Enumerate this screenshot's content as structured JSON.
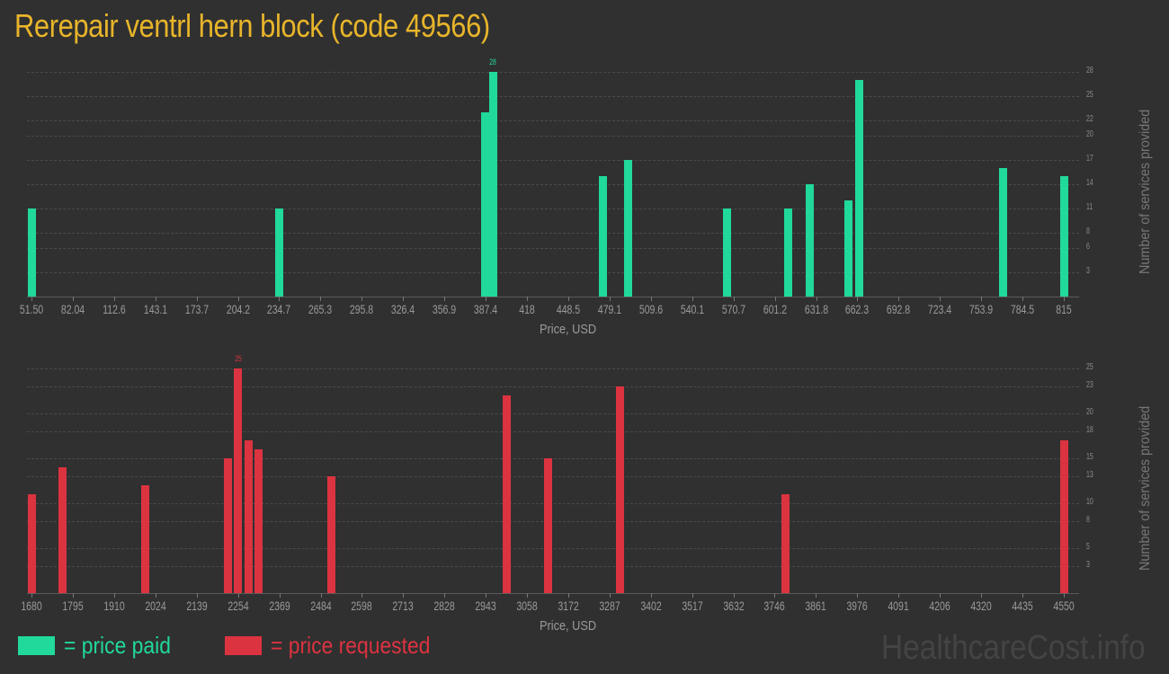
{
  "title": "Rerepair ventrl hern block (code 49566)",
  "colors": {
    "paid": "#20d99a",
    "requested": "#dc3340",
    "title": "#e8b52a",
    "background": "#303030"
  },
  "legend": {
    "paid": "= price paid",
    "requested": "= price requested"
  },
  "watermark": "HealthcareCost.info",
  "chart_data": [
    {
      "type": "bar",
      "title": "",
      "series_name": "price paid",
      "xlabel": "Price, USD",
      "ylabel": "Number of services provided",
      "x_ticks": [
        "51.50",
        "82.04",
        "112.6",
        "143.1",
        "173.7",
        "204.2",
        "234.7",
        "265.3",
        "295.8",
        "326.4",
        "356.9",
        "387.4",
        "418",
        "448.5",
        "479.1",
        "509.6",
        "540.1",
        "570.7",
        "601.2",
        "631.8",
        "662.3",
        "692.8",
        "723.4",
        "753.9",
        "784.5",
        "815"
      ],
      "y_ticks": [
        "3",
        "6",
        "8",
        "11",
        "14",
        "17",
        "20",
        "22",
        "25",
        "28"
      ],
      "ylim": [
        0,
        28
      ],
      "peak_label": "28",
      "bars": [
        {
          "x": 51.5,
          "value": 11
        },
        {
          "x": 234.7,
          "value": 11
        },
        {
          "x": 387.0,
          "value": 23
        },
        {
          "x": 393.0,
          "value": 28
        },
        {
          "x": 474.0,
          "value": 15
        },
        {
          "x": 493.0,
          "value": 17
        },
        {
          "x": 566.0,
          "value": 11
        },
        {
          "x": 611.0,
          "value": 11
        },
        {
          "x": 627.0,
          "value": 14
        },
        {
          "x": 656.0,
          "value": 12
        },
        {
          "x": 664.0,
          "value": 27
        },
        {
          "x": 770.0,
          "value": 16
        },
        {
          "x": 815.0,
          "value": 15
        }
      ],
      "grid": true
    },
    {
      "type": "bar",
      "title": "",
      "series_name": "price requested",
      "xlabel": "Price, USD",
      "ylabel": "Number of services provided",
      "x_ticks": [
        "1680",
        "1795",
        "1910",
        "2024",
        "2139",
        "2254",
        "2369",
        "2484",
        "2598",
        "2713",
        "2828",
        "2943",
        "3058",
        "3172",
        "3287",
        "3402",
        "3517",
        "3632",
        "3746",
        "3861",
        "3976",
        "4091",
        "4206",
        "4320",
        "4435",
        "4550"
      ],
      "y_ticks": [
        "3",
        "5",
        "8",
        "10",
        "13",
        "15",
        "18",
        "20",
        "23",
        "25"
      ],
      "ylim": [
        0,
        25
      ],
      "peak_label": "25",
      "bars": [
        {
          "x": 1680,
          "value": 11
        },
        {
          "x": 1765,
          "value": 14
        },
        {
          "x": 1995,
          "value": 12
        },
        {
          "x": 2225,
          "value": 15
        },
        {
          "x": 2254,
          "value": 25
        },
        {
          "x": 2283,
          "value": 17
        },
        {
          "x": 2311,
          "value": 16
        },
        {
          "x": 2513,
          "value": 13
        },
        {
          "x": 3000,
          "value": 22
        },
        {
          "x": 3115,
          "value": 15
        },
        {
          "x": 3316,
          "value": 23
        },
        {
          "x": 3775,
          "value": 11
        },
        {
          "x": 4550,
          "value": 17
        }
      ],
      "grid": true
    }
  ]
}
